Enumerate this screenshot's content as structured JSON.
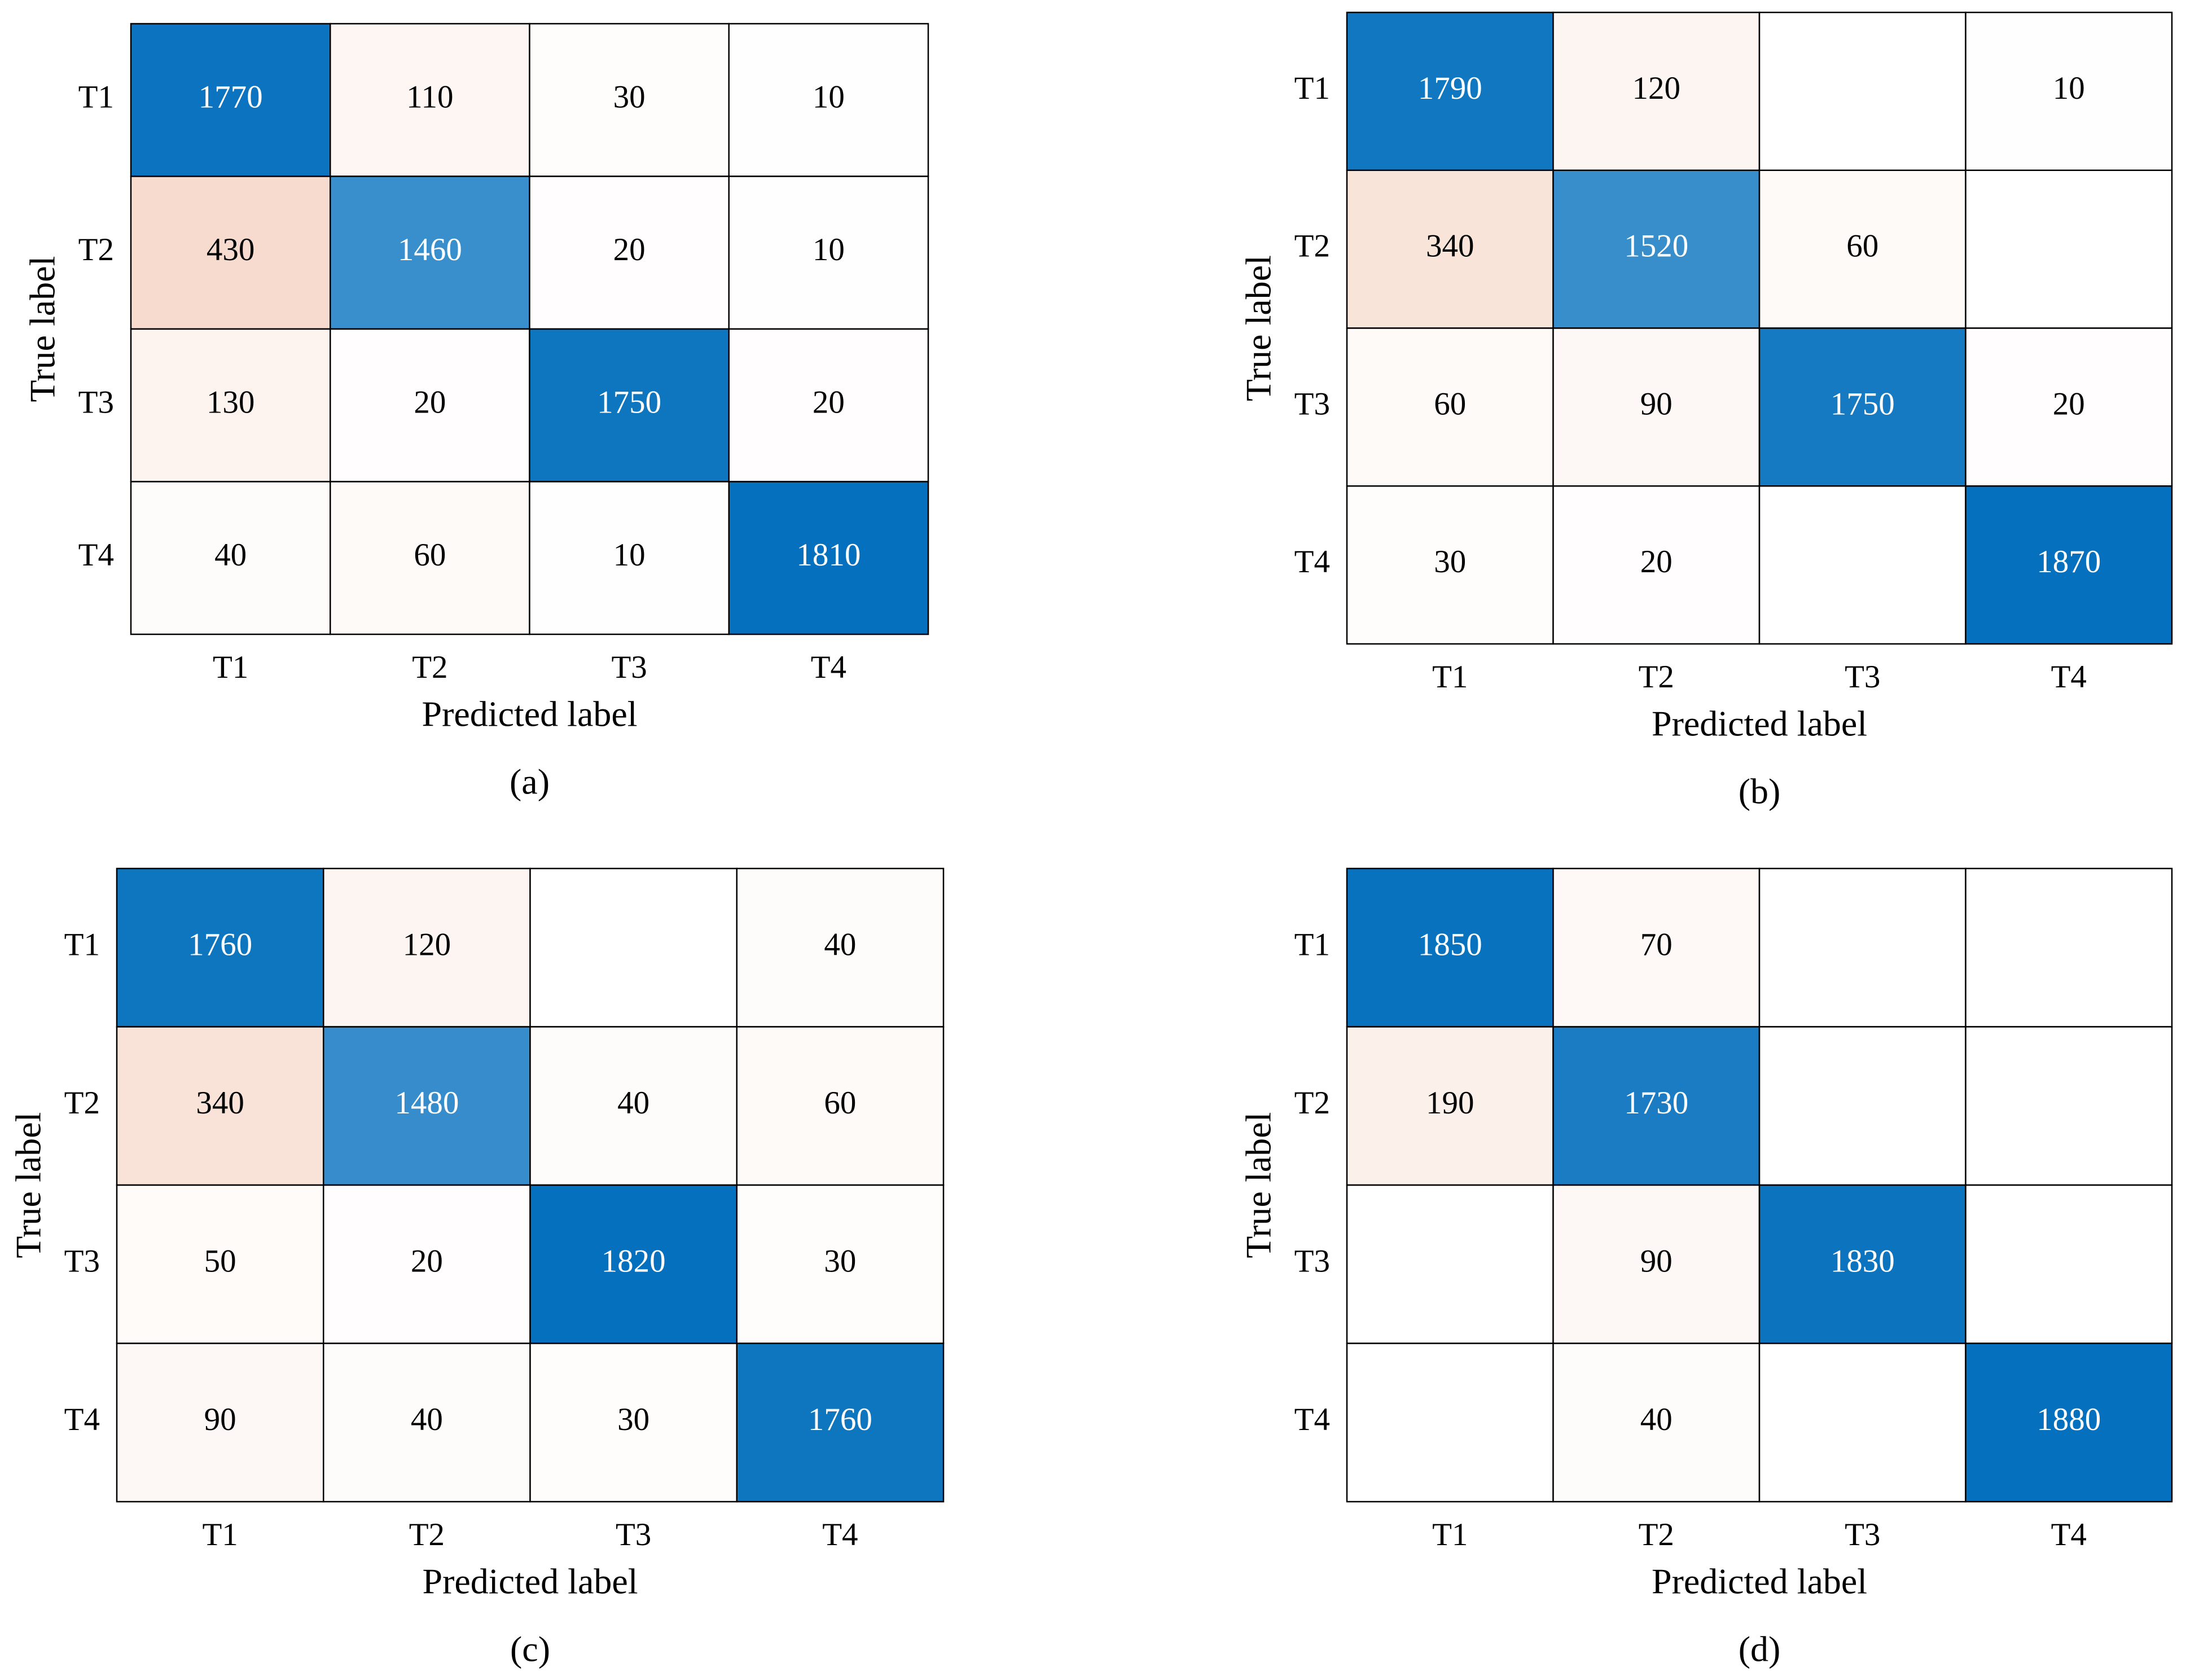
{
  "chart_data": [
    {
      "type": "heatmap",
      "caption": "(a)",
      "xlabel": "Predicted label",
      "ylabel": "True label",
      "x_categories": [
        "T1",
        "T2",
        "T3",
        "T4"
      ],
      "y_categories": [
        "T1",
        "T2",
        "T3",
        "T4"
      ],
      "values": [
        [
          1770,
          110,
          30,
          10
        ],
        [
          430,
          1460,
          20,
          10
        ],
        [
          130,
          20,
          1750,
          20
        ],
        [
          40,
          60,
          10,
          1810
        ]
      ],
      "colormap": [
        "#ffffff",
        "#f4cdbb",
        "#5fa3d6",
        "#0570bd"
      ]
    },
    {
      "type": "heatmap",
      "caption": "(b)",
      "xlabel": "Predicted label",
      "ylabel": "True label",
      "x_categories": [
        "T1",
        "T2",
        "T3",
        "T4"
      ],
      "y_categories": [
        "T1",
        "T2",
        "T3",
        "T4"
      ],
      "values": [
        [
          1790,
          120,
          null,
          10
        ],
        [
          340,
          1520,
          60,
          null
        ],
        [
          60,
          90,
          1750,
          20
        ],
        [
          30,
          20,
          null,
          1870
        ]
      ],
      "colormap": [
        "#ffffff",
        "#f4cdbb",
        "#5fa3d6",
        "#0570bd"
      ]
    },
    {
      "type": "heatmap",
      "caption": "(c)",
      "xlabel": "Predicted label",
      "ylabel": "True label",
      "x_categories": [
        "T1",
        "T2",
        "T3",
        "T4"
      ],
      "y_categories": [
        "T1",
        "T2",
        "T3",
        "T4"
      ],
      "values": [
        [
          1760,
          120,
          null,
          40
        ],
        [
          340,
          1480,
          40,
          60
        ],
        [
          50,
          20,
          1820,
          30
        ],
        [
          90,
          40,
          30,
          1760
        ]
      ],
      "colormap": [
        "#ffffff",
        "#f4cdbb",
        "#5fa3d6",
        "#0570bd"
      ]
    },
    {
      "type": "heatmap",
      "caption": "(d)",
      "xlabel": "Predicted label",
      "ylabel": "True label",
      "x_categories": [
        "T1",
        "T2",
        "T3",
        "T4"
      ],
      "y_categories": [
        "T1",
        "T2",
        "T3",
        "T4"
      ],
      "values": [
        [
          1850,
          70,
          null,
          null
        ],
        [
          190,
          1730,
          null,
          null
        ],
        [
          null,
          90,
          1830,
          null
        ],
        [
          null,
          40,
          null,
          1880
        ]
      ],
      "colormap": [
        "#ffffff",
        "#f4cdbb",
        "#5fa3d6",
        "#0570bd"
      ]
    }
  ]
}
